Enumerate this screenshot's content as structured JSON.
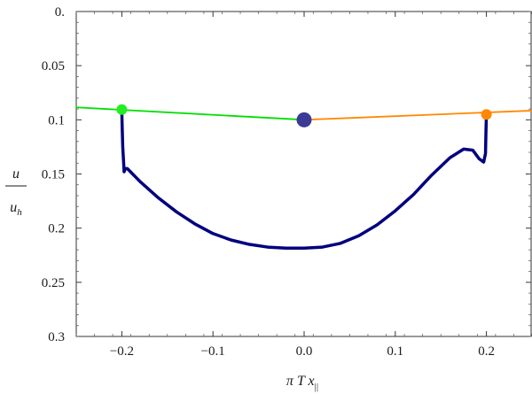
{
  "chart_data": {
    "type": "line",
    "xlabel": "π T x",
    "xlabel_subscript": "||",
    "ylabel_numerator": "u",
    "ylabel_denominator": "u",
    "ylabel_denominator_subscript": "h",
    "xlim": [
      -0.25,
      0.25
    ],
    "ylim": [
      0.3,
      0.0
    ],
    "y_axis_inverted": true,
    "grid": false,
    "x_ticks": [
      {
        "value": -0.2,
        "label": "−0.2"
      },
      {
        "value": -0.1,
        "label": "−0.1"
      },
      {
        "value": 0.0,
        "label": "0.0"
      },
      {
        "value": 0.1,
        "label": "0.1"
      },
      {
        "value": 0.2,
        "label": "0.2"
      }
    ],
    "y_ticks": [
      {
        "value": 0.0,
        "label": "0."
      },
      {
        "value": 0.05,
        "label": "0.05"
      },
      {
        "value": 0.1,
        "label": "0.1"
      },
      {
        "value": 0.15,
        "label": "0.15"
      },
      {
        "value": 0.2,
        "label": "0.2"
      },
      {
        "value": 0.25,
        "label": "0.25"
      },
      {
        "value": 0.3,
        "label": "0.3"
      }
    ],
    "series": [
      {
        "color": "#00e000",
        "x": [
          -0.25,
          0.0
        ],
        "y": [
          0.0885,
          0.1
        ]
      },
      {
        "color": "#ff8800",
        "x": [
          0.0,
          0.25
        ],
        "y": [
          0.1,
          0.0915
        ]
      },
      {
        "color": "#00007f",
        "x": [
          -0.2,
          -0.1995,
          -0.199,
          -0.198,
          -0.1975,
          -0.196,
          -0.194,
          -0.18,
          -0.16,
          -0.14,
          -0.12,
          -0.1,
          -0.08,
          -0.06,
          -0.04,
          -0.02,
          0.0,
          0.02,
          0.04,
          0.06,
          0.08,
          0.1,
          0.12,
          0.14,
          0.16,
          0.175,
          0.185,
          0.192,
          0.197,
          0.199,
          0.1995,
          0.2
        ],
        "y": [
          0.093,
          0.11,
          0.125,
          0.14,
          0.148,
          0.145,
          0.145,
          0.157,
          0.172,
          0.185,
          0.196,
          0.205,
          0.211,
          0.215,
          0.2175,
          0.2185,
          0.2185,
          0.2175,
          0.214,
          0.207,
          0.197,
          0.184,
          0.169,
          0.151,
          0.135,
          0.127,
          0.128,
          0.136,
          0.139,
          0.131,
          0.11,
          0.095
        ]
      }
    ],
    "points": [
      {
        "x": -0.2,
        "y": 0.0905,
        "color": "#22ee22",
        "size": "small"
      },
      {
        "x": 0.0,
        "y": 0.1,
        "color": "#3b3b96",
        "size": "large"
      },
      {
        "x": 0.2,
        "y": 0.095,
        "color": "#ff8800",
        "size": "small"
      }
    ]
  }
}
